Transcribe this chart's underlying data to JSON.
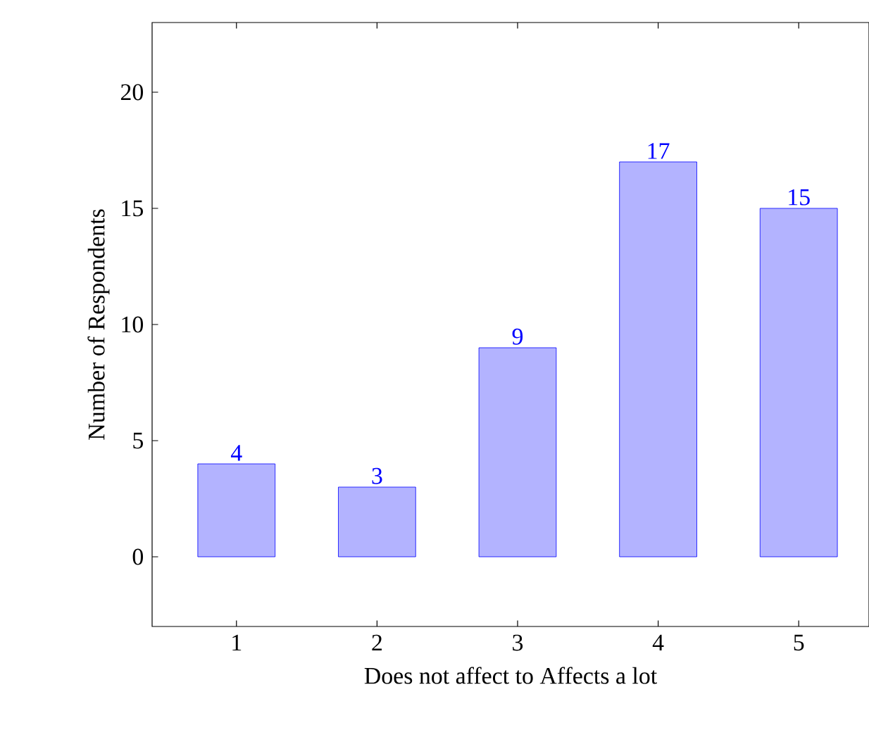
{
  "chart_data": {
    "type": "bar",
    "xlabel": "Does not affect to Affects a lot",
    "ylabel": "Number of Respondents",
    "x": [
      1,
      2,
      3,
      4,
      5
    ],
    "values": [
      4,
      3,
      9,
      17,
      15
    ],
    "color": "#b3b3ff",
    "xlim": [
      0.4,
      5.5
    ],
    "xticks": [
      1,
      2,
      3,
      4,
      5
    ],
    "ylim": [
      -3,
      23
    ],
    "yticks": [
      0,
      5,
      10,
      15,
      20
    ],
    "data_labels": true,
    "grid": false
  }
}
